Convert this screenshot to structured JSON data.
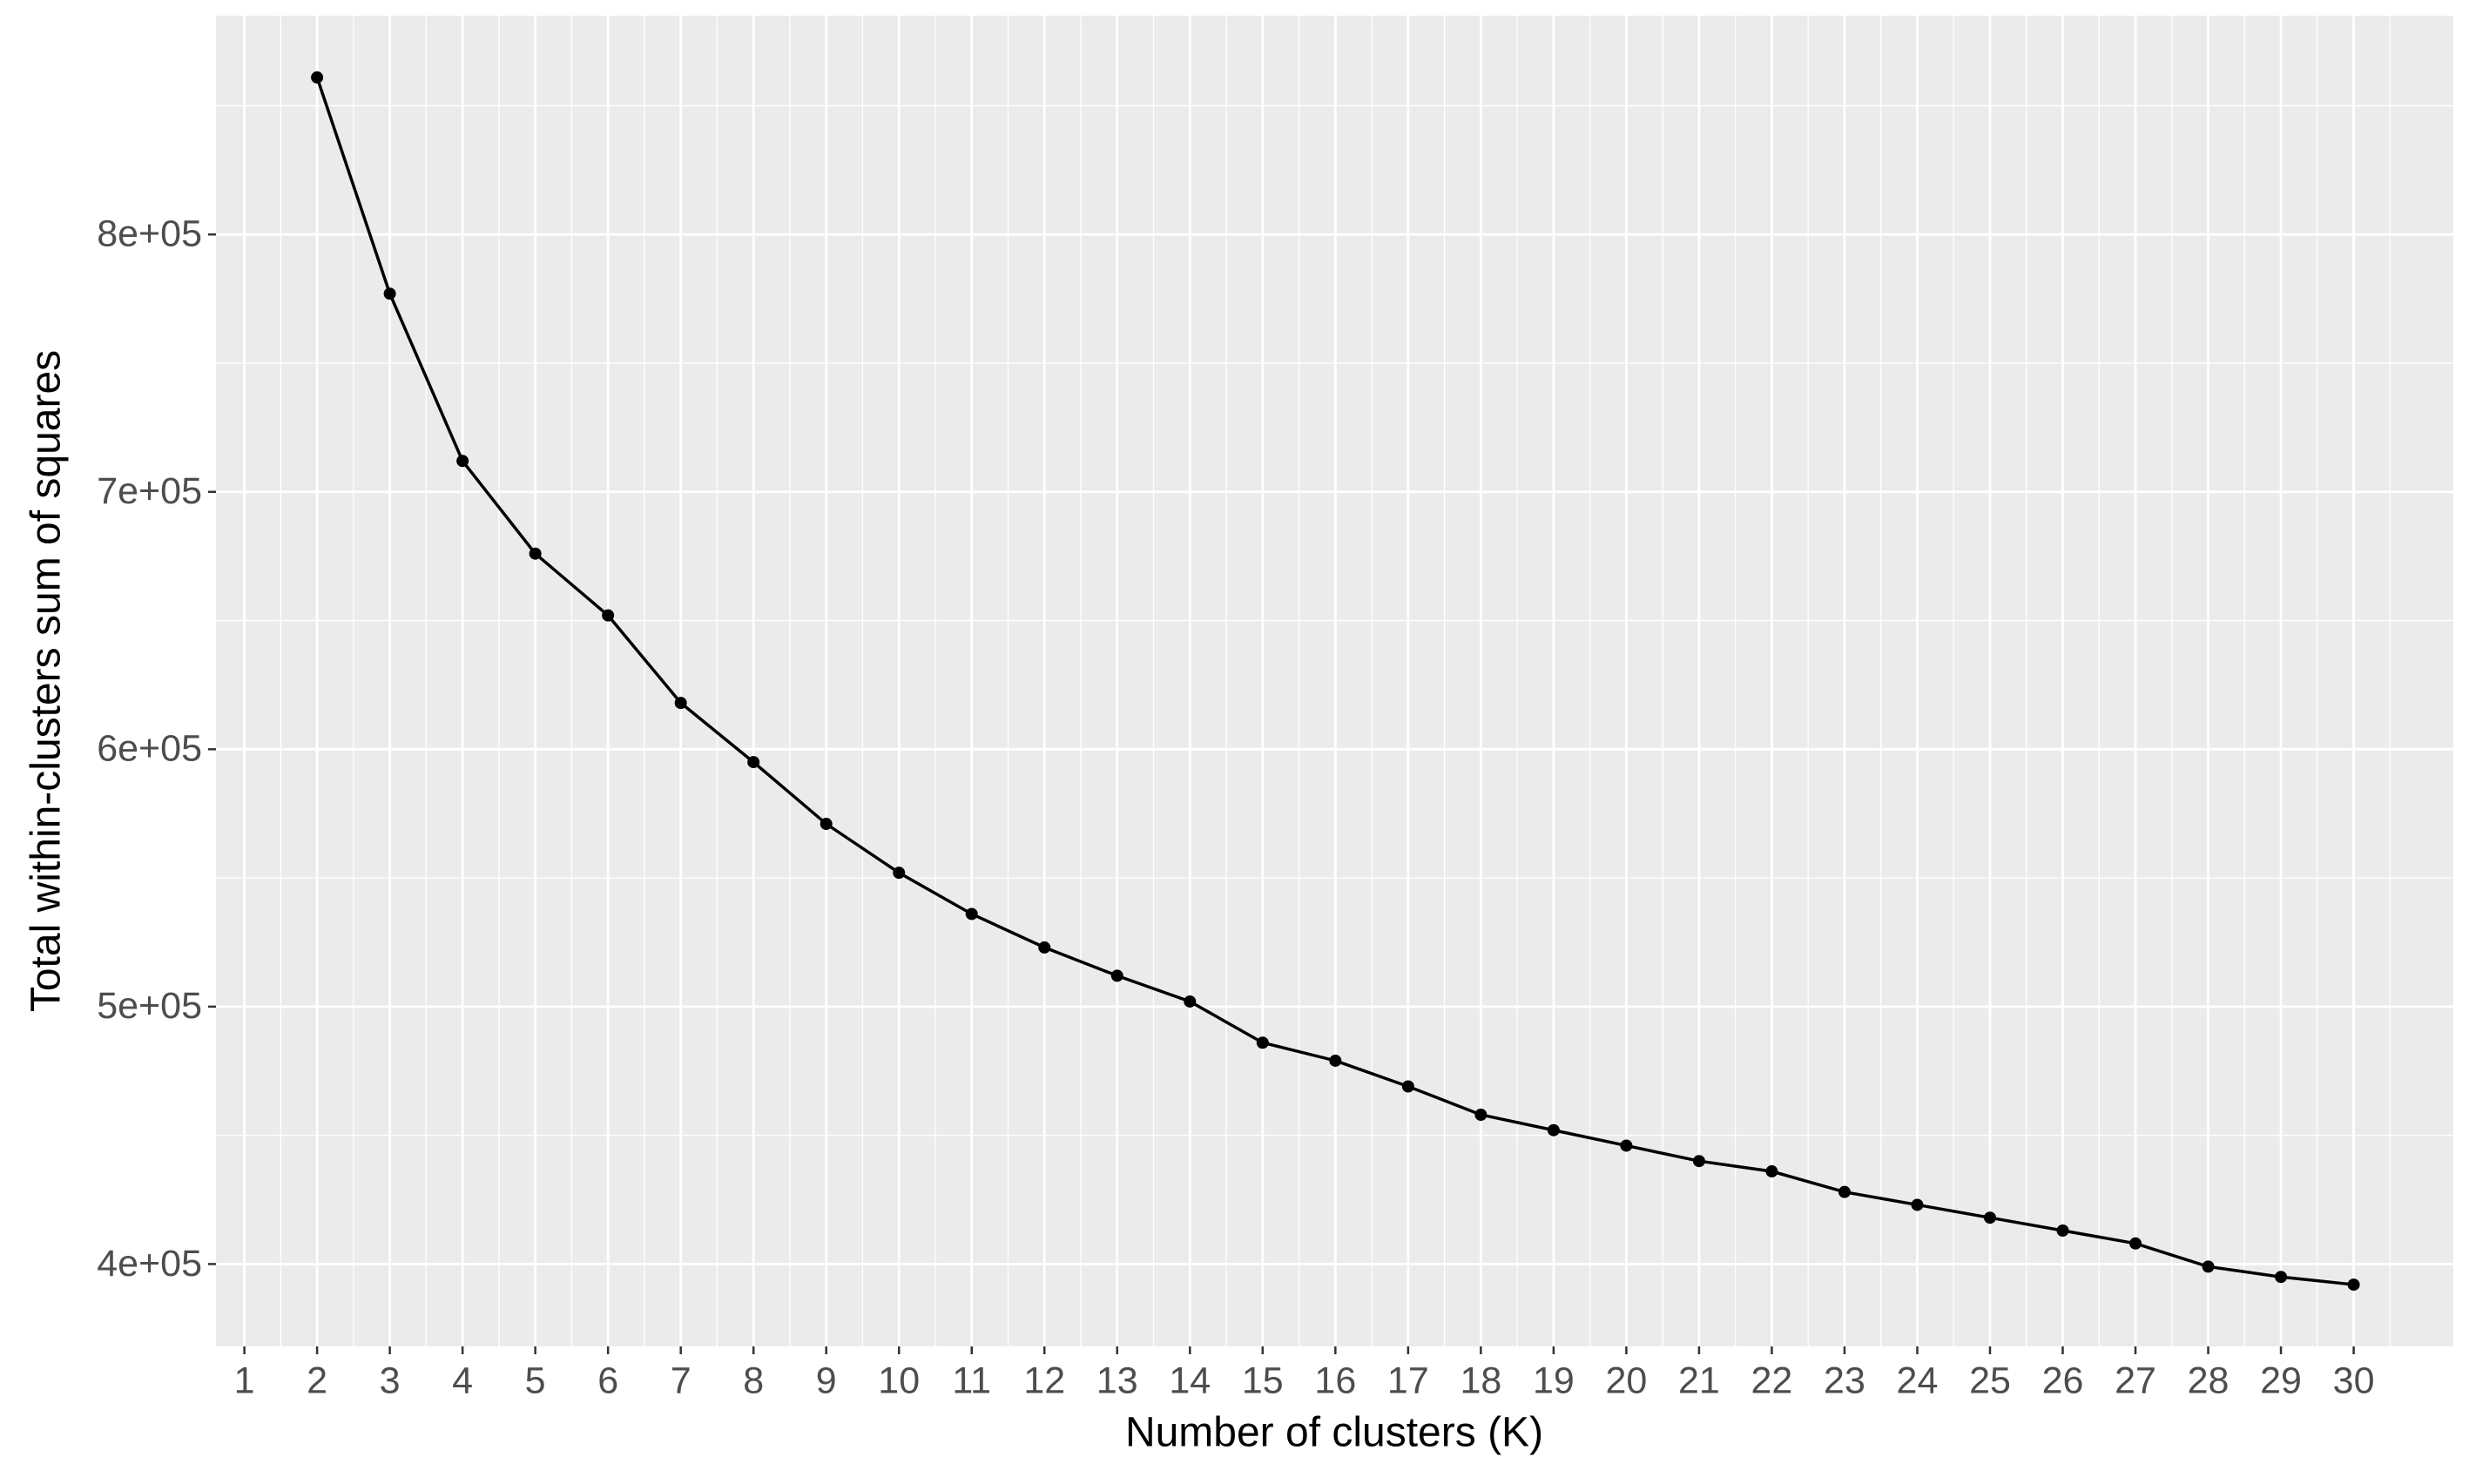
{
  "chart_data": {
    "type": "line",
    "x_label": "Number of clusters (K)",
    "y_label": "Total within-clusters sum of squares",
    "x": [
      2,
      3,
      4,
      5,
      6,
      7,
      8,
      9,
      10,
      11,
      12,
      13,
      14,
      15,
      16,
      17,
      18,
      19,
      20,
      21,
      22,
      23,
      24,
      25,
      26,
      27,
      28,
      29,
      30
    ],
    "series": [
      {
        "color": "#000000",
        "values": [
          861000,
          777000,
          712000,
          676000,
          652000,
          618000,
          595000,
          571000,
          552000,
          536000,
          523000,
          512000,
          502000,
          486000,
          479000,
          469000,
          458000,
          452000,
          446000,
          440000,
          436000,
          428000,
          423000,
          418000,
          413000,
          408000,
          399000,
          395000,
          392000
        ]
      }
    ],
    "xlim": [
      0.61,
      31.37
    ],
    "ylim": [
      368000,
      885000
    ],
    "xticks": [
      1,
      2,
      3,
      4,
      5,
      6,
      7,
      8,
      9,
      10,
      11,
      12,
      13,
      14,
      15,
      16,
      17,
      18,
      19,
      20,
      21,
      22,
      23,
      24,
      25,
      26,
      27,
      28,
      29,
      30
    ],
    "yticks": [
      {
        "value": 400000,
        "label": "4e+05"
      },
      {
        "value": 500000,
        "label": "5e+05"
      },
      {
        "value": 600000,
        "label": "6e+05"
      },
      {
        "value": 700000,
        "label": "7e+05"
      },
      {
        "value": 800000,
        "label": "8e+05"
      }
    ],
    "grid": true,
    "markers": true
  }
}
